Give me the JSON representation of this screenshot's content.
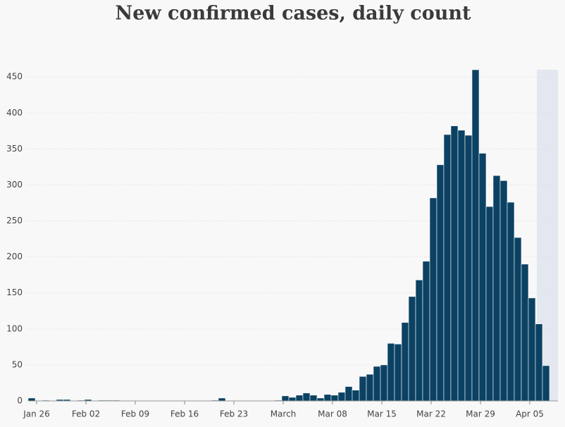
{
  "chart_data": {
    "type": "bar",
    "title": "New confirmed cases, daily count",
    "categories": [
      null,
      "Jan 26",
      null,
      null,
      null,
      null,
      null,
      null,
      "Feb 02",
      null,
      null,
      null,
      null,
      null,
      null,
      "Feb 09",
      null,
      null,
      null,
      null,
      null,
      null,
      "Feb 16",
      null,
      null,
      null,
      null,
      null,
      null,
      "Feb 23",
      null,
      null,
      null,
      null,
      null,
      null,
      "March",
      null,
      null,
      null,
      null,
      null,
      null,
      "Mar 08",
      null,
      null,
      null,
      null,
      null,
      null,
      "Mar 15",
      null,
      null,
      null,
      null,
      null,
      null,
      "Mar 22",
      null,
      null,
      null,
      null,
      null,
      null,
      "Mar 29",
      null,
      null,
      null,
      null,
      null,
      null,
      "Apr 05",
      null,
      null
    ],
    "values": [
      4,
      0,
      1,
      0,
      2,
      2,
      0,
      1,
      2,
      0,
      1,
      1,
      1,
      0,
      0,
      0,
      0,
      0,
      0,
      0,
      0,
      0,
      0,
      0,
      0,
      0,
      1,
      4,
      0,
      0,
      0,
      0,
      0,
      0,
      0,
      1,
      7,
      5,
      8,
      11,
      8,
      4,
      9,
      8,
      12,
      20,
      15,
      34,
      37,
      48,
      50,
      80,
      79,
      109,
      145,
      168,
      194,
      282,
      328,
      370,
      382,
      376,
      369,
      460,
      344,
      270,
      313,
      306,
      276,
      227,
      190,
      143,
      107,
      49
    ],
    "color": "#0b4263",
    "ylim": [
      0,
      460
    ],
    "yticks": [
      0,
      50,
      100,
      150,
      200,
      250,
      300,
      350,
      400,
      450
    ],
    "grid": true
  }
}
